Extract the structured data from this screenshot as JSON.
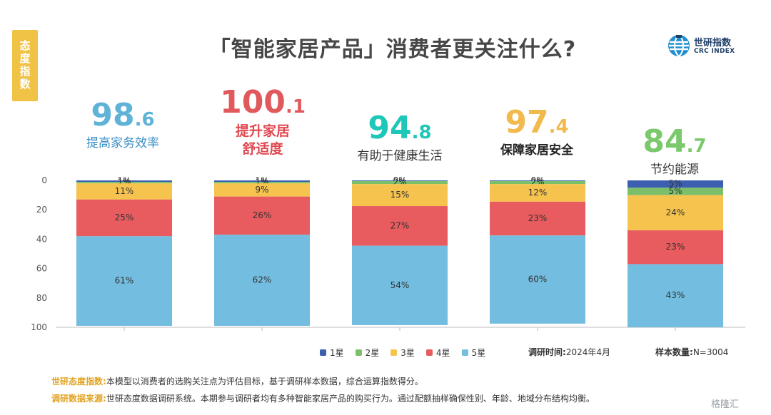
{
  "header": {
    "side_tag": "态度指数",
    "title": "「智能家居产品」消费者更关注什么?",
    "logo_cn": "世研指数",
    "logo_en": "CRC INDEX"
  },
  "scores": [
    {
      "int": "98",
      "dec": ".6",
      "label_lines": [
        "提高家务效率"
      ],
      "color": "#5fb3d8"
    },
    {
      "int": "100",
      "dec": ".1",
      "label_lines": [
        "提升家居",
        "舒适度"
      ],
      "color": "#e0595d"
    },
    {
      "int": "94",
      "dec": ".8",
      "label_lines": [
        "有助于健康生活"
      ],
      "color": "#1fc7b8"
    },
    {
      "int": "97",
      "dec": ".4",
      "label_lines": [
        "保障家居安全"
      ],
      "color": "#f2b94c"
    },
    {
      "int": "84",
      "dec": ".7",
      "label_lines": [
        "节约能源"
      ],
      "color": "#7cc96d"
    }
  ],
  "chart_data": {
    "type": "bar",
    "stacked": true,
    "categories": [
      "提高家务效率",
      "提升家居舒适度",
      "有助于健康生活",
      "保障家居安全",
      "节约能源"
    ],
    "yticks": [
      "0",
      "20",
      "40",
      "60",
      "80",
      "100"
    ],
    "ylim": [
      0,
      100
    ],
    "y_inverted": true,
    "series": [
      {
        "name": "1星",
        "color": "#3d5fb0",
        "values": [
          1,
          1,
          0.5,
          0.5,
          5
        ],
        "labels": [
          "1%",
          "1%",
          "0%",
          "0%",
          "5%"
        ]
      },
      {
        "name": "2星",
        "color": "#7bbf6a",
        "values": [
          1,
          1,
          2,
          2,
          5
        ],
        "labels": [
          "1%",
          "1%",
          "2%",
          "2%",
          "5%"
        ]
      },
      {
        "name": "3星",
        "color": "#f5c34e",
        "values": [
          11,
          9,
          15,
          12,
          24
        ],
        "labels": [
          "11%",
          "9%",
          "15%",
          "12%",
          "24%"
        ]
      },
      {
        "name": "4星",
        "color": "#e85b5e",
        "values": [
          25,
          26,
          27,
          23,
          23
        ],
        "labels": [
          "25%",
          "26%",
          "27%",
          "23%",
          "23%"
        ]
      },
      {
        "name": "5星",
        "color": "#72bde0",
        "values": [
          61,
          62,
          54,
          60,
          43
        ],
        "labels": [
          "61%",
          "62%",
          "54%",
          "60%",
          "43%"
        ]
      }
    ]
  },
  "legend": {
    "items": [
      {
        "name": "1星",
        "color": "#3d5fb0"
      },
      {
        "name": "2星",
        "color": "#7bbf6a"
      },
      {
        "name": "3星",
        "color": "#f5c34e"
      },
      {
        "name": "4星",
        "color": "#e85b5e"
      },
      {
        "name": "5星",
        "color": "#72bde0"
      }
    ],
    "survey_time_label": "调研时间:",
    "survey_time": "2024年4月",
    "sample_label": "样本数量:",
    "sample_value": "N=3004"
  },
  "notes": [
    {
      "label": "世研态度指数:",
      "text": "本模型以消费者的选购关注点为评估目标，基于调研样本数据，综合运算指数得分。"
    },
    {
      "label": "调研数据来源:",
      "text": "世研态度数据调研系统。本期参与调研者均有多种智能家居产品的购买行为。通过配额抽样确保性别、年龄、地域分布结构均衡。"
    }
  ],
  "watermark": "格隆汇"
}
